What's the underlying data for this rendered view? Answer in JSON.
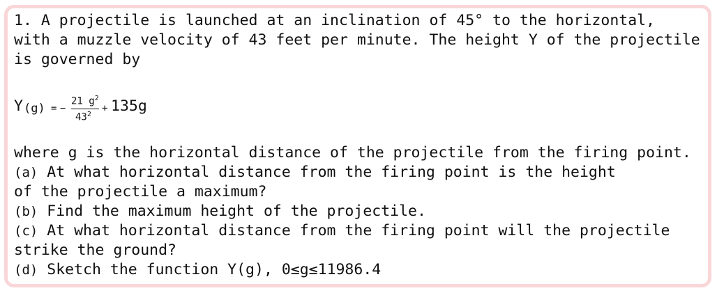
{
  "problem": {
    "number": "1.",
    "intro": [
      "A projectile is launched at an inclination of 45° to the horizontal,",
      "with a muzzle velocity of 43 feet per minute. The height Y of the projectile",
      "is governed by"
    ],
    "equation": {
      "lhs": "Y",
      "arg": "(g)",
      "eq": "=",
      "sign": "−",
      "numerator": "21 g",
      "num_exp": "2",
      "denominator": "43",
      "den_exp": "2",
      "plus": "+",
      "term": "135g"
    },
    "body": "where g is the horizontal distance of the projectile from the firing point.",
    "parts": [
      {
        "label": "(a)",
        "lines": [
          "At what horizontal distance from the firing point is the height",
          "of the projectile a maximum?"
        ]
      },
      {
        "label": "(b)",
        "lines": [
          "Find the maximum height of the projectile."
        ]
      },
      {
        "label": "(c)",
        "lines": [
          "At what horizontal distance from the firing point will the projectile",
          "strike the ground?"
        ]
      },
      {
        "label": "(d)",
        "lines": [
          "Sketch the function Y(g), 0≤g≤11986.4"
        ]
      }
    ]
  }
}
